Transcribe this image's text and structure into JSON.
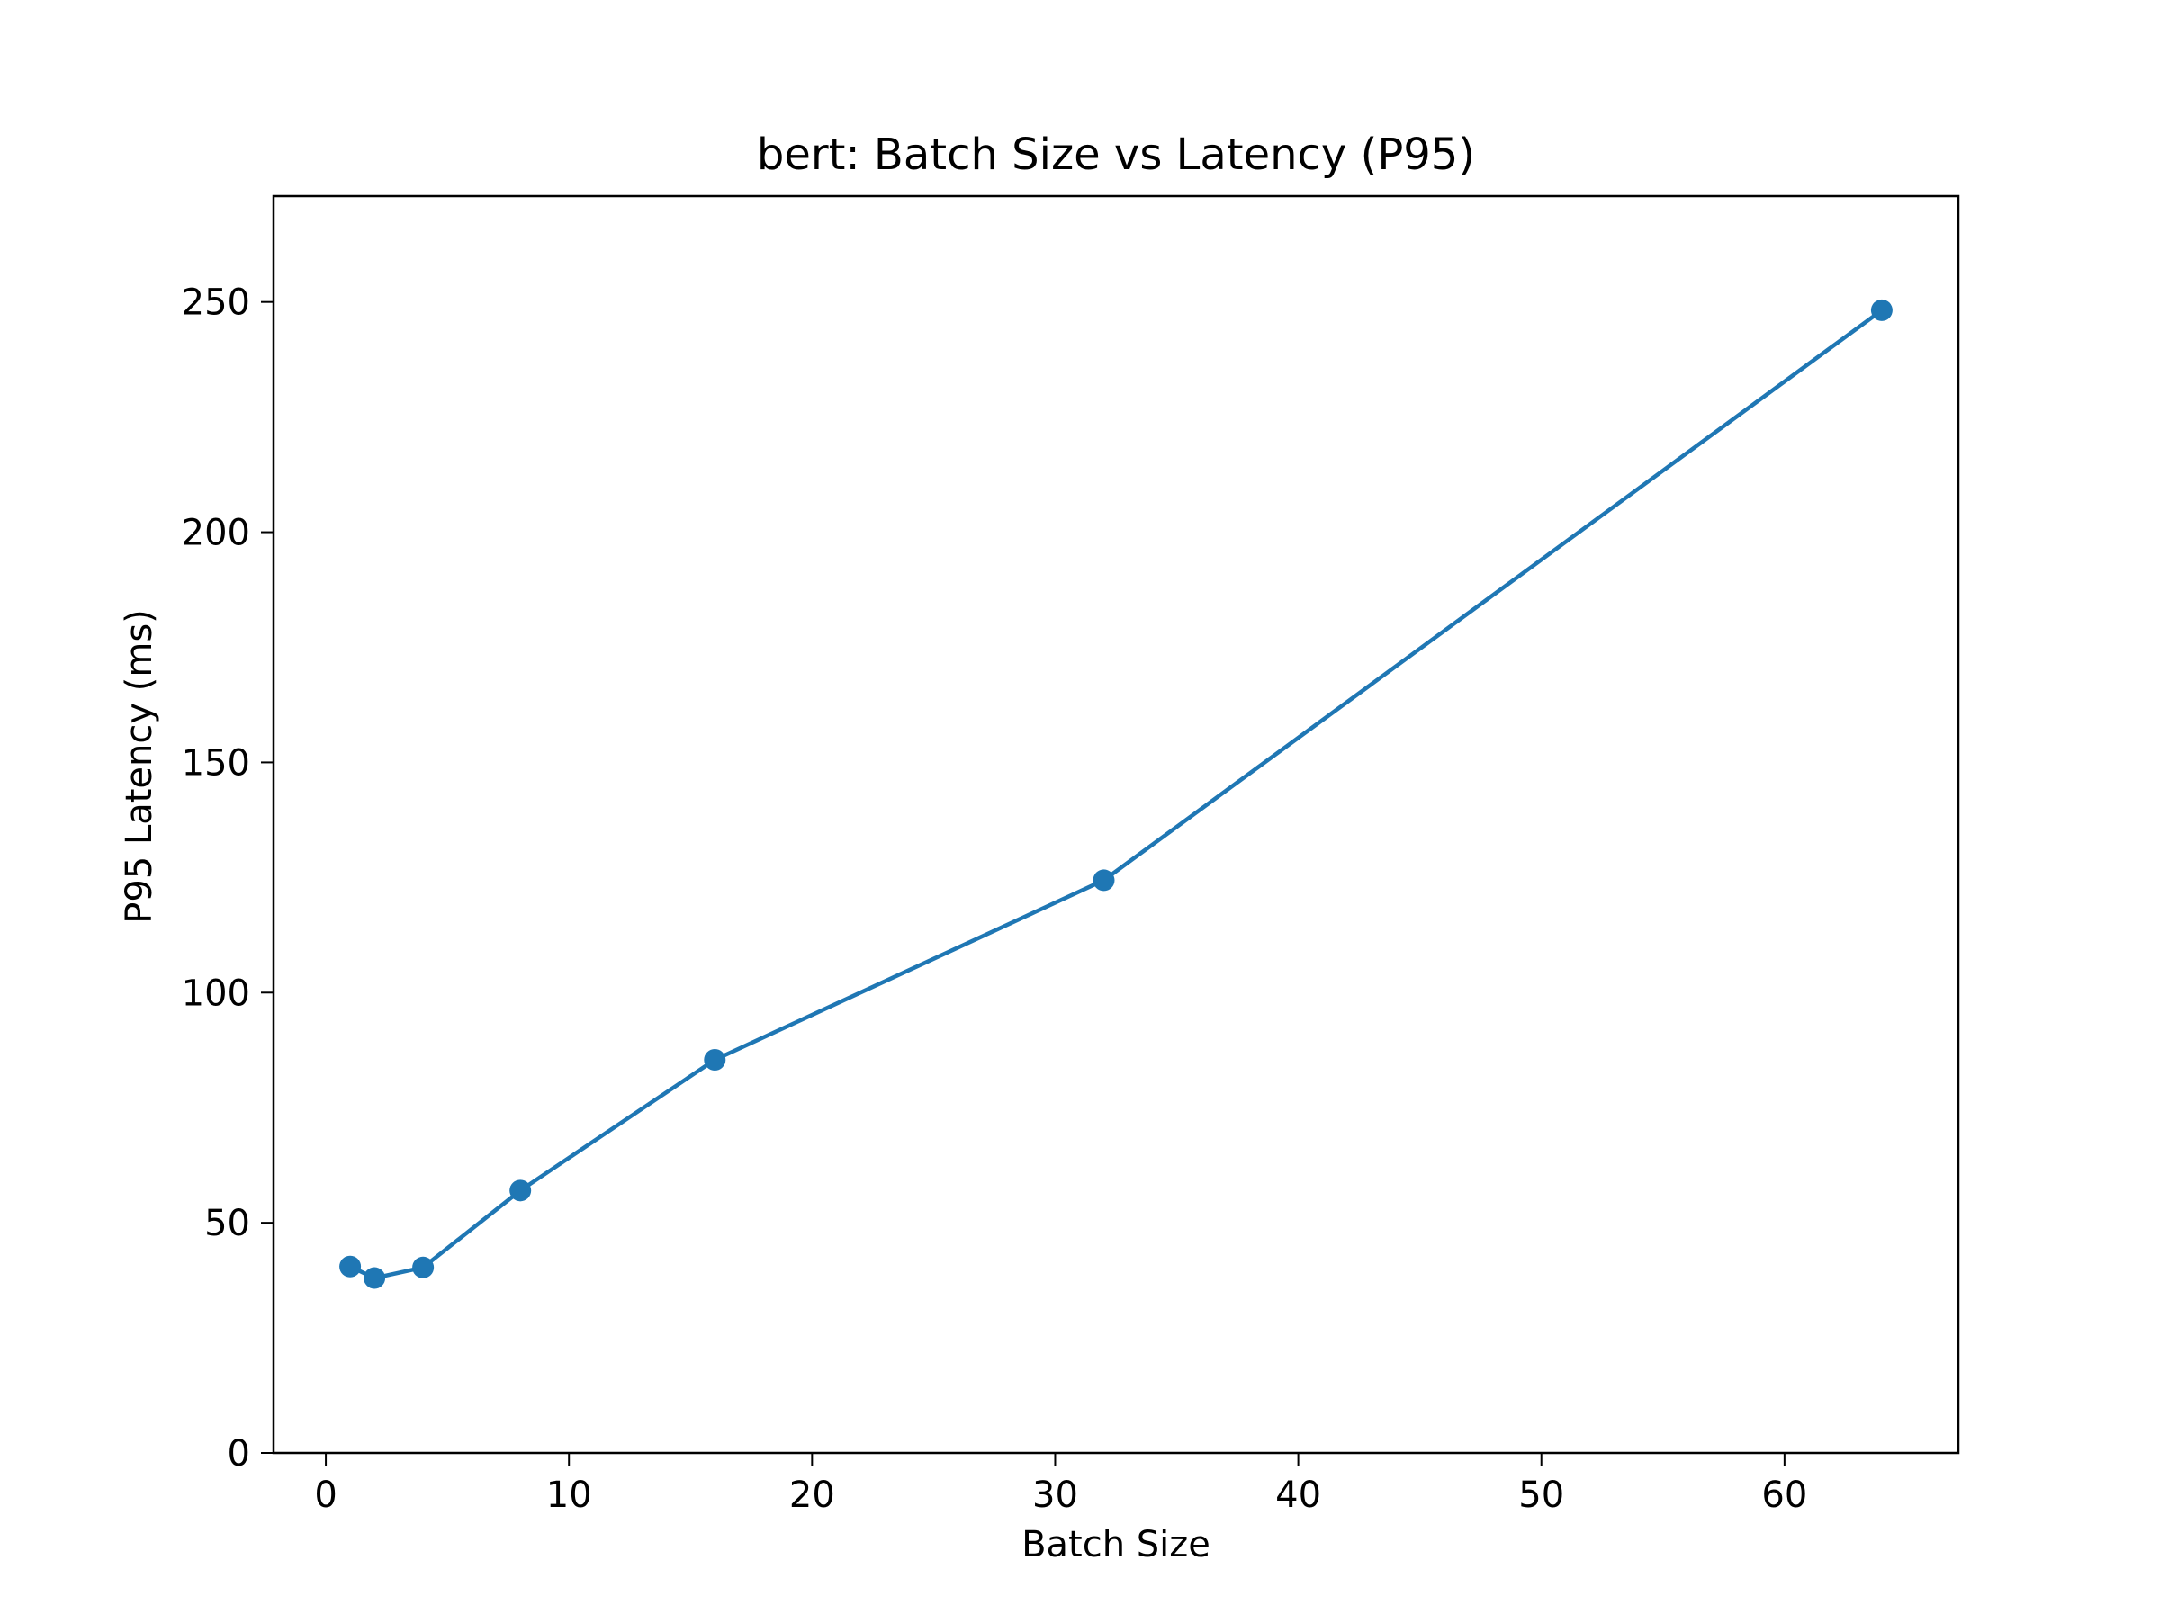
{
  "chart_data": {
    "type": "line",
    "title": "bert: Batch Size vs Latency (P95)",
    "xlabel": "Batch Size",
    "ylabel": "P95 Latency (ms)",
    "xlim": [
      -2.15,
      67.15
    ],
    "ylim": [
      0,
      273
    ],
    "xticks": [
      0,
      10,
      20,
      30,
      40,
      50,
      60
    ],
    "yticks": [
      0,
      50,
      100,
      150,
      200,
      250
    ],
    "x": [
      1,
      2,
      4,
      8,
      16,
      32,
      64
    ],
    "series": [
      {
        "values": [
          40.5,
          38.0,
          40.3,
          57.0,
          85.4,
          124.4,
          248.2
        ],
        "color": "#1f77b4",
        "marker": "circle"
      }
    ],
    "grid": false,
    "legend": "none"
  }
}
